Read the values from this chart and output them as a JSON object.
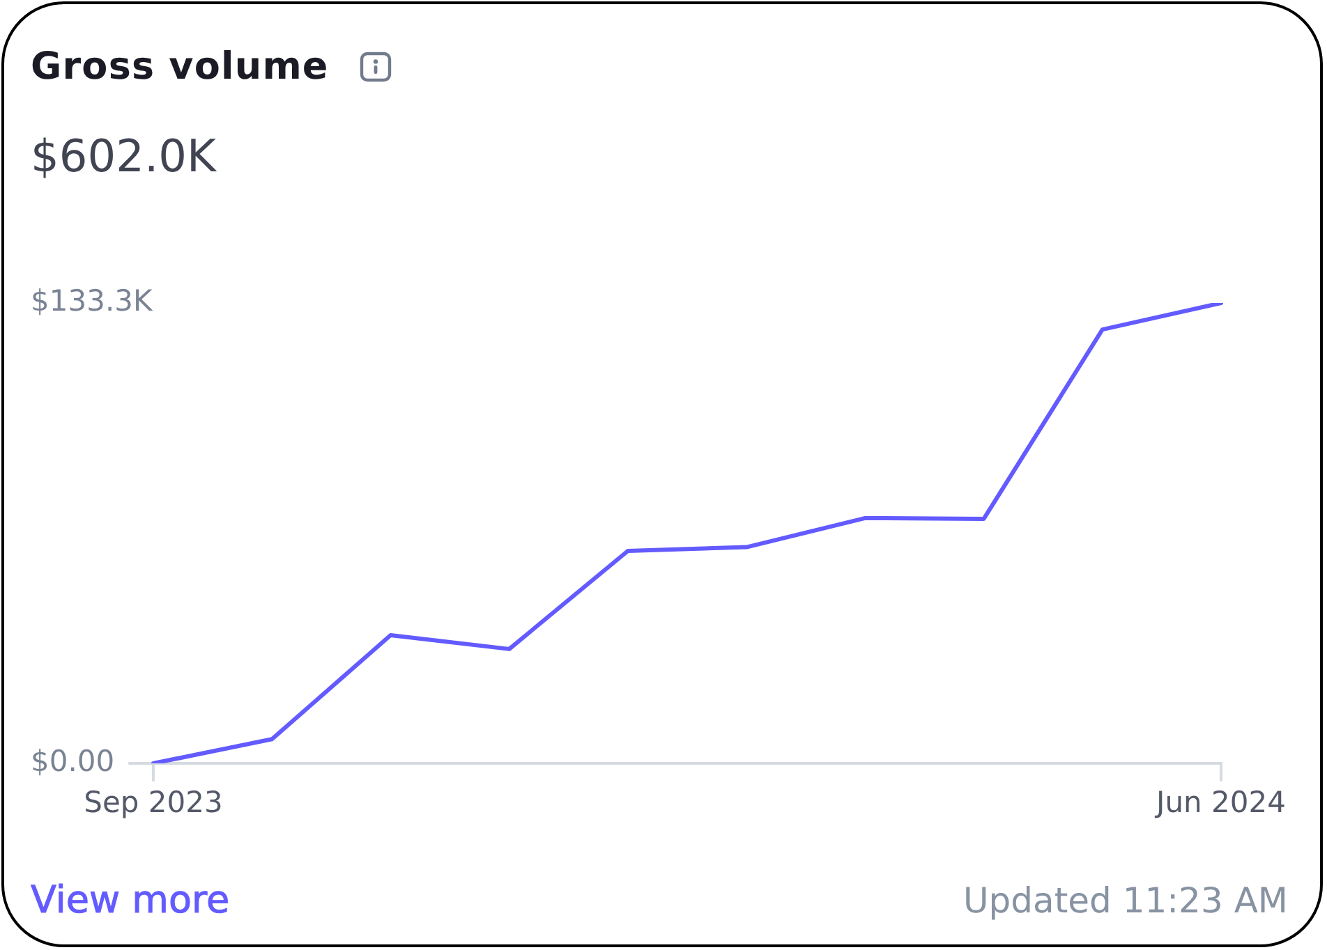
{
  "chart_data": {
    "type": "line",
    "title": "Gross volume",
    "subtitle": "$602.0K",
    "categories": [
      "Sep 2023",
      null,
      null,
      null,
      null,
      null,
      null,
      null,
      null,
      "Jun 2024"
    ],
    "series": [
      {
        "color": "#635bff",
        "values": [
          0,
          7.0,
          37.1,
          33.1,
          61.5,
          62.6,
          71.0,
          70.8,
          125.6,
          133.3
        ]
      }
    ],
    "ylim": [
      0,
      133.3
    ],
    "yticks": [
      {
        "value": 0,
        "label": "$0.00"
      },
      {
        "value": 133.3,
        "label": "$133.3K"
      }
    ],
    "marker": "none",
    "line_style": "solid",
    "annotations": [
      "View more",
      "Updated 11:23 AM"
    ]
  }
}
